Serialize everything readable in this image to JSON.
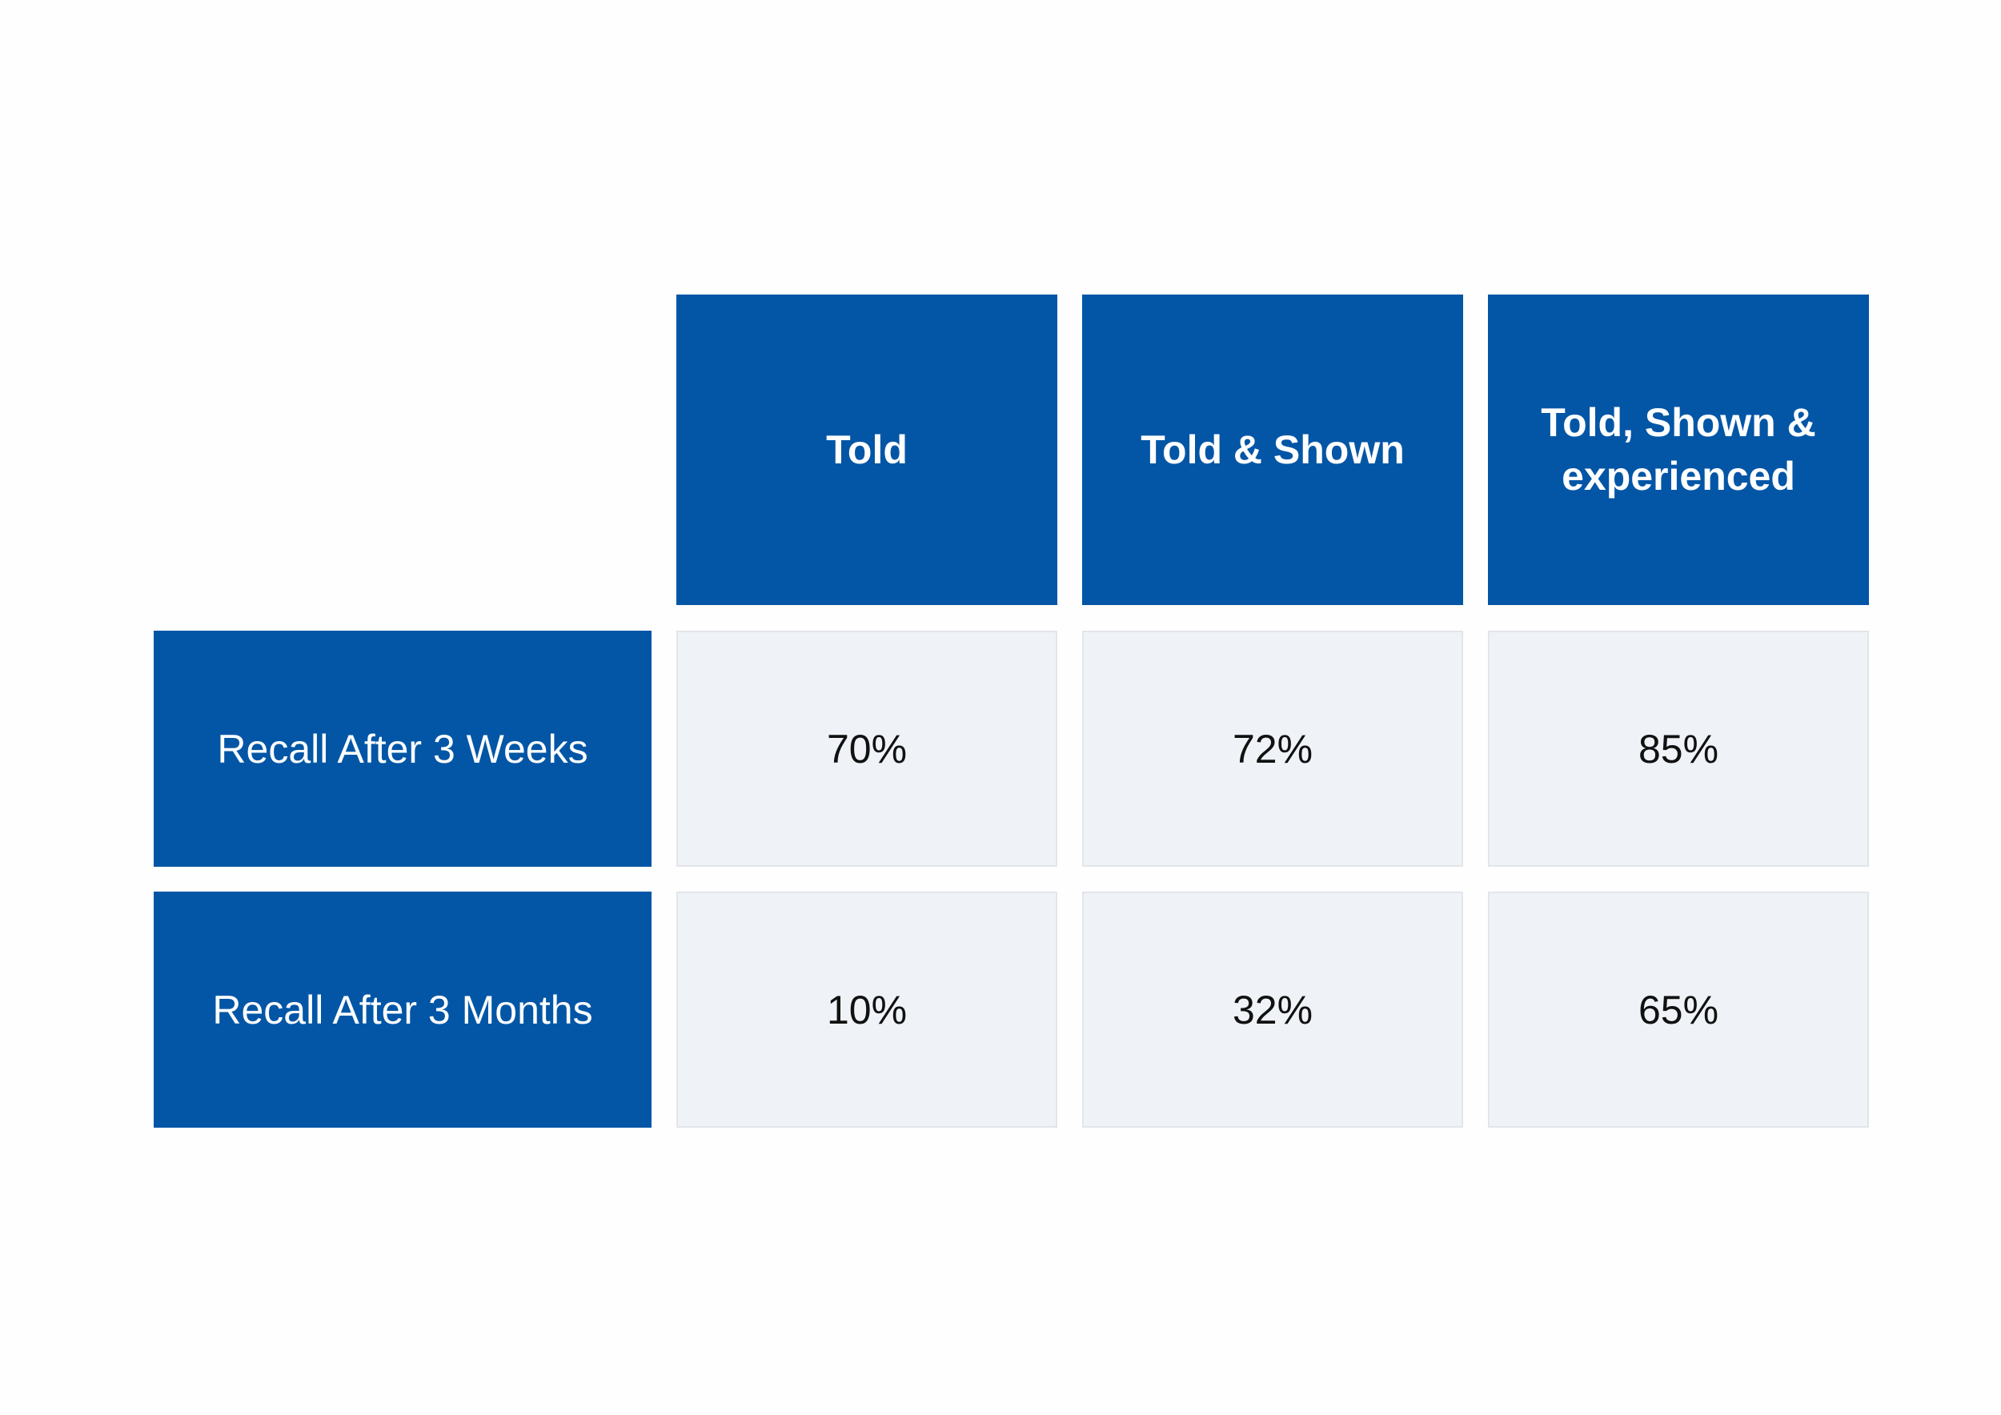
{
  "chart_data": {
    "type": "table",
    "columns": [
      "Told",
      "Told & Shown",
      "Told, Shown & experienced"
    ],
    "rows": [
      {
        "label": "Recall After 3 Weeks",
        "values": [
          "70%",
          "72%",
          "85%"
        ]
      },
      {
        "label": "Recall After 3 Months",
        "values": [
          "10%",
          "32%",
          "65%"
        ]
      }
    ]
  },
  "colors": {
    "header_blue": "#0356a6",
    "cell_background": "#eff2f7",
    "header_text": "#ffffff",
    "cell_text": "#111111"
  }
}
